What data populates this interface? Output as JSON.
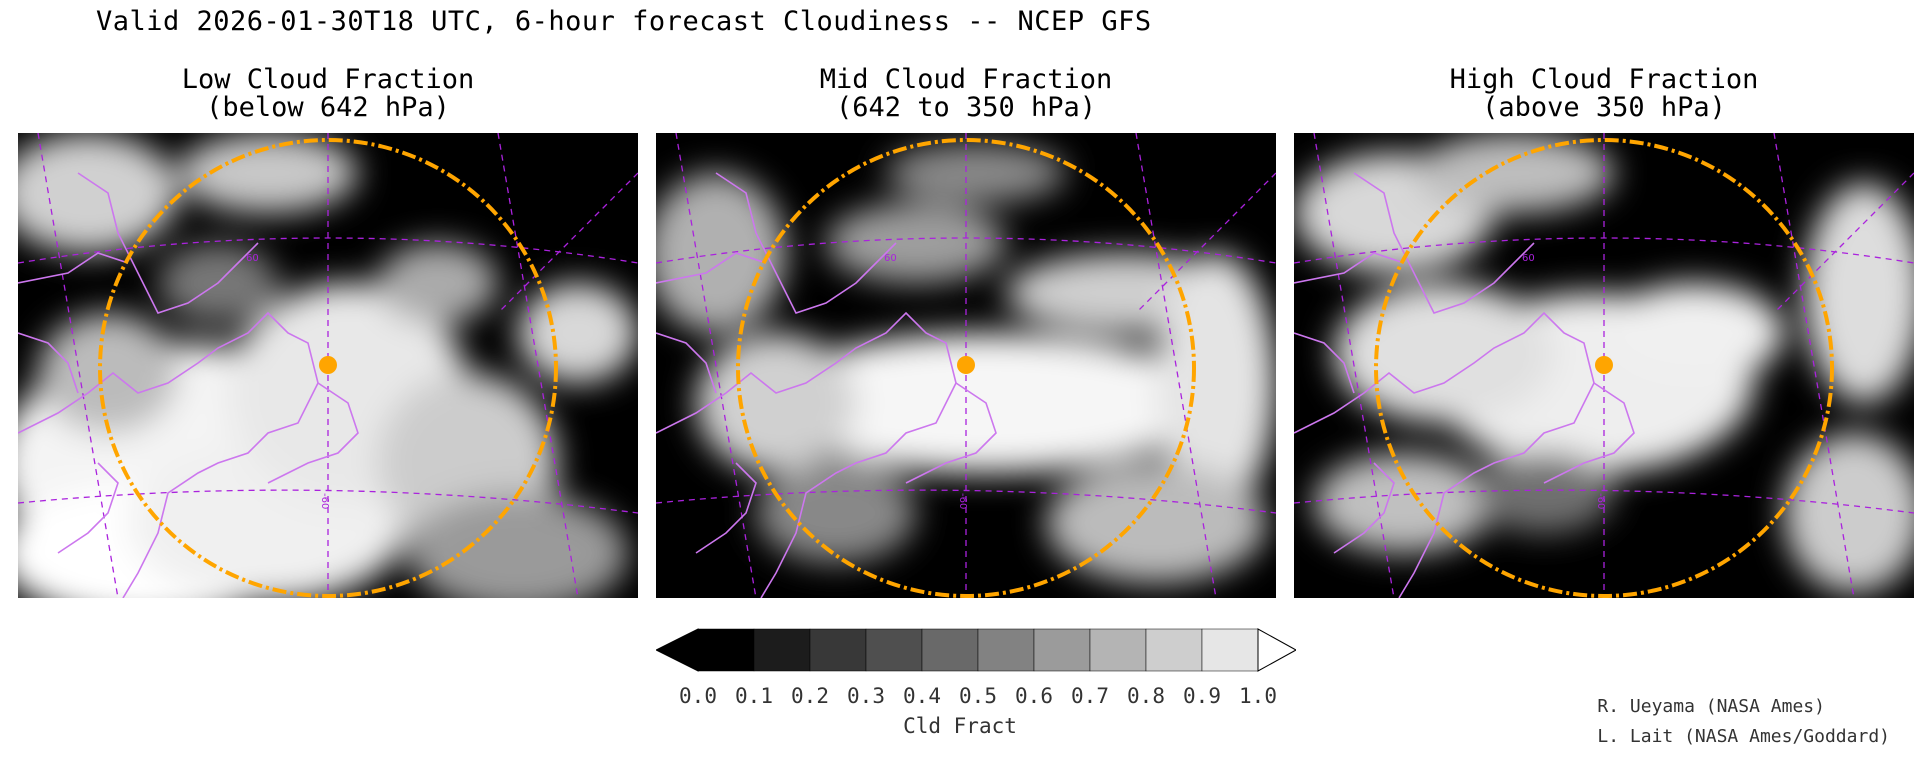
{
  "header": {
    "title": "Valid 2026-01-30T18 UTC, 6-hour forecast Cloudiness -- NCEP GFS"
  },
  "panels": [
    {
      "title_line1": "Low Cloud Fraction",
      "title_line2": "(below 642 hPa)",
      "style": "low"
    },
    {
      "title_line1": "Mid Cloud Fraction",
      "title_line2": "(642 to 350 hPa)",
      "style": "mid"
    },
    {
      "title_line1": "High Cloud Fraction",
      "title_line2": "(above 350 hPa)",
      "style": "high"
    }
  ],
  "map_labels": {
    "lat": "60",
    "lon": "-60"
  },
  "colors": {
    "coastline": "#cc77ee",
    "graticule": "#aa22dd",
    "range_ring": "#ffa500",
    "marker": "#ffa500"
  },
  "colorbar": {
    "label": "Cld Fract",
    "ticks": [
      "0.0",
      "0.1",
      "0.2",
      "0.3",
      "0.4",
      "0.5",
      "0.6",
      "0.7",
      "0.8",
      "0.9",
      "1.0"
    ],
    "fills": [
      "#000000",
      "#1c1c1c",
      "#383838",
      "#4f4f4f",
      "#696969",
      "#828282",
      "#9b9b9b",
      "#b4b4b4",
      "#cecece",
      "#e6e6e6",
      "#ffffff"
    ]
  },
  "credits": {
    "line1": "R. Ueyama (NASA Ames)",
    "line2": "L. Lait (NASA Ames/Goddard)"
  }
}
